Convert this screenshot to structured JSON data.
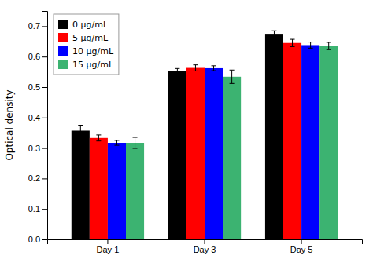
{
  "chart_data": {
    "type": "bar",
    "categories": [
      "Day 1",
      "Day 3",
      "Day 5"
    ],
    "series": [
      {
        "name": "0 μg/mL",
        "color": "#000000",
        "values": [
          0.357,
          0.553,
          0.675
        ],
        "errors": [
          0.018,
          0.008,
          0.01
        ]
      },
      {
        "name": "5 μg/mL",
        "color": "#ff0000",
        "values": [
          0.333,
          0.563,
          0.645
        ],
        "errors": [
          0.01,
          0.01,
          0.012
        ]
      },
      {
        "name": "10 μg/mL",
        "color": "#0000ff",
        "values": [
          0.317,
          0.562,
          0.638
        ],
        "errors": [
          0.008,
          0.008,
          0.01
        ]
      },
      {
        "name": "15 μg/mL",
        "color": "#3cb371",
        "values": [
          0.317,
          0.534,
          0.635
        ],
        "errors": [
          0.018,
          0.022,
          0.012
        ]
      }
    ],
    "ylabel": "Optical density",
    "ylim": [
      0.0,
      0.75
    ],
    "yticks": [
      {
        "value": 0,
        "label": "0.0"
      },
      0.1,
      0.2,
      0.3,
      0.4,
      0.5,
      0.6,
      0.7
    ],
    "legend": "upper left",
    "grid": false
  }
}
